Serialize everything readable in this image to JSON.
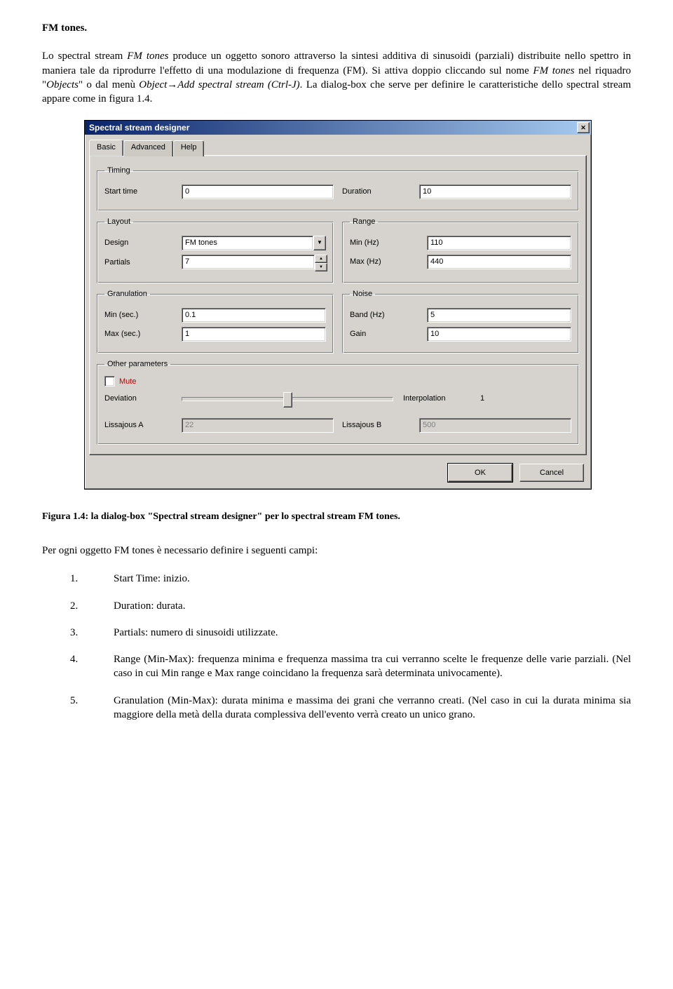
{
  "heading": "FM tones.",
  "intro_before_italics": "Lo spectral stream ",
  "intro_italic_1": "FM tones",
  "intro_middle_1": " produce un oggetto sonoro attraverso la sintesi additiva di sinusoidi (parziali) distribuite nello spettro in maniera tale da riprodurre l'effetto di una modulazione di frequenza (FM). Si attiva doppio cliccando sul nome ",
  "intro_italic_2": "FM tones",
  "intro_middle_2": " nel riquadro \"",
  "intro_italic_3": "Objects",
  "intro_middle_3": "\" o dal menù ",
  "intro_italic_4": "Object→Add spectral stream (Ctrl-J)",
  "intro_end": ". La dialog-box che serve per definire le caratteristiche dello spectral stream appare come in figura 1.4.",
  "dialog": {
    "title": "Spectral stream designer",
    "tabs": [
      "Basic",
      "Advanced",
      "Help"
    ],
    "groups": {
      "timing": {
        "legend": "Timing",
        "start_time_lbl": "Start time",
        "start_time_val": "0",
        "duration_lbl": "Duration",
        "duration_val": "10"
      },
      "layout": {
        "legend": "Layout",
        "design_lbl": "Design",
        "design_val": "FM tones",
        "partials_lbl": "Partials",
        "partials_val": "7"
      },
      "range": {
        "legend": "Range",
        "min_lbl": "Min (Hz)",
        "min_val": "110",
        "max_lbl": "Max (Hz)",
        "max_val": "440"
      },
      "granulation": {
        "legend": "Granulation",
        "min_lbl": "Min (sec.)",
        "min_val": "0.1",
        "max_lbl": "Max (sec.)",
        "max_val": "1"
      },
      "noise": {
        "legend": "Noise",
        "band_lbl": "Band (Hz)",
        "band_val": "5",
        "gain_lbl": "Gain",
        "gain_val": "10"
      },
      "other": {
        "legend": "Other parameters",
        "mute_lbl": "Mute",
        "deviation_lbl": "Deviation",
        "interp_lbl": "Interpolation",
        "interp_val": "1",
        "lissA_lbl": "Lissajous A",
        "lissA_val": "22",
        "lissB_lbl": "Lissajous B",
        "lissB_val": "500"
      }
    },
    "ok_lbl": "OK",
    "cancel_lbl": "Cancel"
  },
  "figure_caption": "Figura 1.4: la dialog-box \"Spectral stream designer\" per lo spectral stream FM tones.",
  "after_text": "Per ogni oggetto FM tones è necessario definire i seguenti campi:",
  "list": {
    "i1_n": "1.",
    "i1_t": "Start Time: inizio.",
    "i2_n": "2.",
    "i2_t": "Duration: durata.",
    "i3_n": "3.",
    "i3_t": "Partials: numero di sinusoidi utilizzate.",
    "i4_n": "4.",
    "i4_t": "Range (Min-Max): frequenza minima e frequenza massima tra cui verranno scelte le frequenze delle varie parziali. (Nel caso in cui Min range e Max range coincidano la frequenza sarà determinata univocamente).",
    "i5_n": "5.",
    "i5_t": "Granulation (Min-Max): durata minima e massima dei grani che verranno creati. (Nel caso in cui la durata minima sia maggiore della metà della durata complessiva dell'evento verrà creato un unico grano."
  }
}
